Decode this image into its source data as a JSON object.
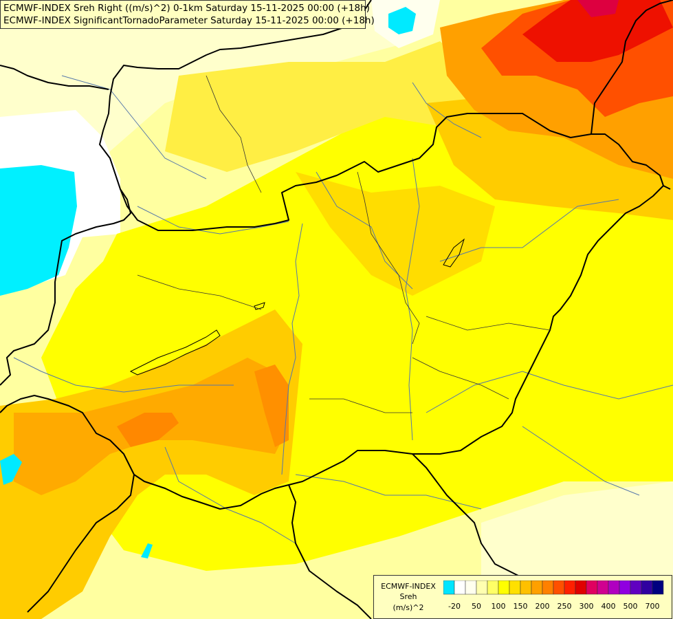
{
  "title_lines": [
    "ECMWF-INDEX Sreh Right ((m/s)^2) 0-1km Saturday 15-11-2025 00:00 (+18h)",
    "ECMWF-INDEX SignificantTornadoParameter Saturday 15-11-2025 00:00 (+18h)"
  ],
  "legend": {
    "model": "ECMWF-INDEX",
    "variable": "Sreh",
    "unit": "(m/s)^2",
    "colors": [
      "#00e5ff",
      "#ffffff",
      "#ffffee",
      "#ffffb0",
      "#ffff66",
      "#ffff00",
      "#ffe000",
      "#ffc000",
      "#ffa000",
      "#ff8000",
      "#ff5000",
      "#ff2000",
      "#e00000",
      "#e00060",
      "#d00090",
      "#b000c0",
      "#9000e0",
      "#6000c0",
      "#3000a0",
      "#000080"
    ],
    "ticks": [
      {
        "label": "-20",
        "index": 1
      },
      {
        "label": "50",
        "index": 3
      },
      {
        "label": "100",
        "index": 5
      },
      {
        "label": "150",
        "index": 7
      },
      {
        "label": "200",
        "index": 9
      },
      {
        "label": "250",
        "index": 11
      },
      {
        "label": "300",
        "index": 13
      },
      {
        "label": "400",
        "index": 15
      },
      {
        "label": "500",
        "index": 17
      },
      {
        "label": "700",
        "index": 19
      }
    ]
  }
}
